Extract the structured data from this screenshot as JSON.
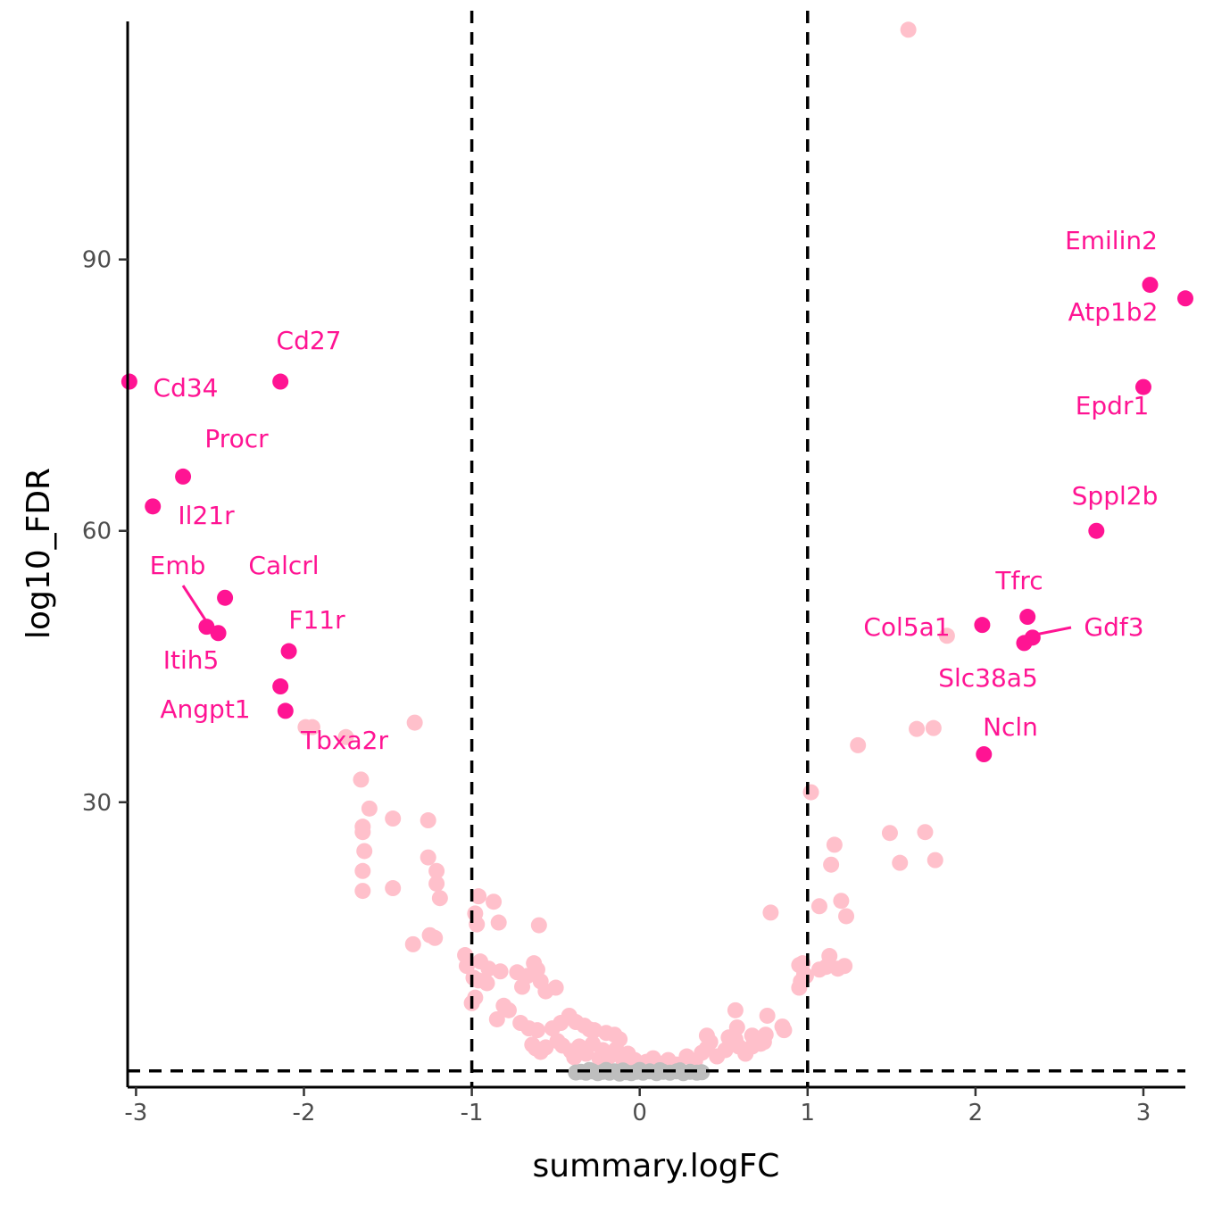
{
  "chart_data": {
    "type": "scatter",
    "xlabel": "summary.logFC",
    "ylabel": "log10_FDR",
    "xlim": [
      -3.05,
      3.25
    ],
    "ylim": [
      -1.5,
      117.5
    ],
    "x_ticks": [
      -3,
      -2,
      -1,
      0,
      1,
      2,
      3
    ],
    "x_tick_labels": [
      "-3",
      "-2",
      "-1",
      "0",
      "1",
      "2",
      "3"
    ],
    "y_ticks": [
      30,
      60,
      90
    ],
    "y_tick_labels": [
      "30",
      "60",
      "90"
    ],
    "thresholds": {
      "logFC": [
        -1,
        1
      ],
      "log10_FDR": 0.3
    },
    "grid": false,
    "legend": "none",
    "colors": {
      "labeled": "#ff1493",
      "significant": "#ffc0cb",
      "not_significant": "#bebebe"
    },
    "labeled_points": [
      {
        "gene": "Cd34",
        "x": -3.04,
        "y": 76.5
      },
      {
        "gene": "Cd27",
        "x": -2.14,
        "y": 76.5
      },
      {
        "gene": "Procr",
        "x": -2.72,
        "y": 66.0
      },
      {
        "gene": "Il21r",
        "x": -2.9,
        "y": 62.7
      },
      {
        "gene": "Calcrl",
        "x": -2.47,
        "y": 52.6
      },
      {
        "gene": "Emb",
        "x": -2.58,
        "y": 49.4
      },
      {
        "gene": "Itih5",
        "x": -2.51,
        "y": 48.7
      },
      {
        "gene": "F11r",
        "x": -2.09,
        "y": 46.7
      },
      {
        "gene": "Angpt1",
        "x": -2.14,
        "y": 42.8
      },
      {
        "gene": "Tbxa2r",
        "x": -2.11,
        "y": 40.1
      },
      {
        "gene": "Emilin2",
        "x": 3.04,
        "y": 87.2
      },
      {
        "gene": "Atp1b2",
        "x": 3.25,
        "y": 85.7
      },
      {
        "gene": "Epdr1",
        "x": 3.0,
        "y": 75.9
      },
      {
        "gene": "Sppl2b",
        "x": 2.72,
        "y": 60.0
      },
      {
        "gene": "Tfrc",
        "x": 2.31,
        "y": 50.5
      },
      {
        "gene": "Col5a1",
        "x": 2.04,
        "y": 49.6
      },
      {
        "gene": "Gdf3",
        "x": 2.34,
        "y": 48.2
      },
      {
        "gene": "Slc38a5",
        "x": 2.29,
        "y": 47.6
      },
      {
        "gene": "Ncln",
        "x": 2.05,
        "y": 35.3
      }
    ],
    "significant_points": [
      [
        1.6,
        115.4
      ],
      [
        -1.99,
        38.3
      ],
      [
        -1.95,
        38.3
      ],
      [
        -1.75,
        37.2
      ],
      [
        -1.34,
        38.8
      ],
      [
        1.65,
        38.1
      ],
      [
        1.75,
        38.2
      ],
      [
        1.83,
        48.4
      ],
      [
        1.3,
        36.3
      ],
      [
        1.02,
        31.1
      ],
      [
        -1.66,
        32.5
      ],
      [
        -1.61,
        29.3
      ],
      [
        -1.65,
        27.3
      ],
      [
        -1.65,
        26.7
      ],
      [
        -1.64,
        24.6
      ],
      [
        -1.65,
        22.4
      ],
      [
        -1.65,
        20.2
      ],
      [
        -1.47,
        28.2
      ],
      [
        -1.47,
        20.5
      ],
      [
        -1.26,
        28.0
      ],
      [
        -1.26,
        23.9
      ],
      [
        -1.21,
        22.4
      ],
      [
        -1.21,
        21.0
      ],
      [
        -1.19,
        19.4
      ],
      [
        -1.35,
        14.3
      ],
      [
        -1.25,
        15.3
      ],
      [
        -1.22,
        15.0
      ],
      [
        -0.98,
        17.7
      ],
      [
        -0.97,
        16.5
      ],
      [
        -0.96,
        19.6
      ],
      [
        -0.87,
        19.0
      ],
      [
        -0.84,
        16.7
      ],
      [
        -0.6,
        16.4
      ],
      [
        -1.04,
        13.1
      ],
      [
        -1.03,
        11.9
      ],
      [
        -0.99,
        10.6
      ],
      [
        -0.96,
        10.3
      ],
      [
        -0.95,
        12.4
      ],
      [
        -0.9,
        11.6
      ],
      [
        -0.91,
        10.0
      ],
      [
        -0.83,
        11.3
      ],
      [
        -0.73,
        11.2
      ],
      [
        -0.7,
        9.6
      ],
      [
        -0.67,
        10.8
      ],
      [
        -0.63,
        12.2
      ],
      [
        -0.61,
        11.5
      ],
      [
        -0.59,
        10.2
      ],
      [
        -0.56,
        9.1
      ],
      [
        -0.5,
        9.5
      ],
      [
        -1.0,
        7.8
      ],
      [
        -0.98,
        8.4
      ],
      [
        -0.85,
        6.0
      ],
      [
        -0.81,
        7.5
      ],
      [
        -0.78,
        7.0
      ],
      [
        -0.71,
        5.6
      ],
      [
        -0.66,
        5.0
      ],
      [
        -0.61,
        4.8
      ],
      [
        -0.52,
        5.0
      ],
      [
        -0.47,
        5.6
      ],
      [
        -0.42,
        6.4
      ],
      [
        -0.38,
        5.7
      ],
      [
        -0.33,
        5.3
      ],
      [
        -0.3,
        4.9
      ],
      [
        -0.27,
        4.8
      ],
      [
        -0.2,
        4.5
      ],
      [
        -0.15,
        4.3
      ],
      [
        -0.12,
        3.8
      ],
      [
        -0.64,
        3.2
      ],
      [
        -0.62,
        2.8
      ],
      [
        -0.59,
        2.4
      ],
      [
        -0.56,
        2.9
      ],
      [
        -0.49,
        3.6
      ],
      [
        -0.46,
        3.1
      ],
      [
        -0.41,
        2.5
      ],
      [
        -0.39,
        1.8
      ],
      [
        -0.36,
        3.0
      ],
      [
        -0.32,
        2.2
      ],
      [
        -0.28,
        3.3
      ],
      [
        -0.24,
        1.7
      ],
      [
        -0.22,
        2.6
      ],
      [
        -0.18,
        1.9
      ],
      [
        -0.14,
        2.7
      ],
      [
        -0.1,
        1.6
      ],
      [
        -0.07,
        2.2
      ],
      [
        -0.03,
        1.5
      ],
      [
        0.04,
        1.3
      ],
      [
        0.08,
        1.7
      ],
      [
        0.12,
        1.1
      ],
      [
        0.17,
        1.5
      ],
      [
        0.22,
        1.0
      ],
      [
        0.28,
        1.9
      ],
      [
        0.33,
        1.4
      ],
      [
        0.37,
        2.3
      ],
      [
        0.4,
        2.8
      ],
      [
        0.42,
        3.5
      ],
      [
        0.46,
        1.9
      ],
      [
        0.51,
        2.6
      ],
      [
        0.55,
        3.3
      ],
      [
        0.57,
        3.8
      ],
      [
        0.59,
        3.0
      ],
      [
        0.63,
        2.2
      ],
      [
        0.67,
        3.0
      ],
      [
        0.72,
        3.3
      ],
      [
        0.75,
        4.3
      ],
      [
        0.4,
        4.2
      ],
      [
        0.53,
        4.0
      ],
      [
        0.67,
        4.2
      ],
      [
        0.58,
        5.1
      ],
      [
        0.74,
        3.5
      ],
      [
        0.85,
        5.2
      ],
      [
        0.86,
        4.8
      ],
      [
        0.76,
        6.4
      ],
      [
        0.57,
        7.0
      ],
      [
        0.78,
        17.8
      ],
      [
        0.95,
        9.5
      ],
      [
        0.96,
        10.2
      ],
      [
        0.98,
        11.0
      ],
      [
        0.95,
        12.0
      ],
      [
        0.97,
        12.2
      ],
      [
        0.99,
        10.8
      ],
      [
        1.07,
        11.5
      ],
      [
        1.11,
        11.8
      ],
      [
        1.13,
        13.0
      ],
      [
        1.18,
        11.6
      ],
      [
        1.22,
        11.9
      ],
      [
        1.07,
        18.5
      ],
      [
        1.2,
        19.1
      ],
      [
        1.23,
        17.4
      ],
      [
        1.14,
        23.1
      ],
      [
        1.16,
        25.3
      ],
      [
        1.49,
        26.6
      ],
      [
        1.55,
        23.3
      ],
      [
        1.7,
        26.7
      ],
      [
        1.76,
        23.6
      ]
    ],
    "nonsignificant_points": [
      [
        -0.35,
        0.2
      ],
      [
        -0.32,
        0.1
      ],
      [
        -0.28,
        0.25
      ],
      [
        -0.25,
        0.05
      ],
      [
        -0.22,
        0.2
      ],
      [
        -0.18,
        0.1
      ],
      [
        -0.15,
        0.25
      ],
      [
        -0.12,
        0.0
      ],
      [
        -0.08,
        0.15
      ],
      [
        -0.05,
        0.05
      ],
      [
        -0.02,
        0.2
      ],
      [
        0.02,
        0.1
      ],
      [
        0.06,
        0.25
      ],
      [
        0.1,
        0.05
      ],
      [
        0.14,
        0.2
      ],
      [
        0.18,
        0.1
      ],
      [
        0.22,
        0.25
      ],
      [
        0.26,
        0.05
      ],
      [
        0.3,
        0.2
      ],
      [
        0.34,
        0.1
      ],
      [
        -0.3,
        0.4
      ],
      [
        -0.2,
        0.4
      ],
      [
        -0.1,
        0.35
      ],
      [
        0.0,
        0.4
      ],
      [
        0.12,
        0.38
      ],
      [
        0.24,
        0.36
      ],
      [
        -0.38,
        0.12
      ],
      [
        0.37,
        0.15
      ]
    ]
  }
}
